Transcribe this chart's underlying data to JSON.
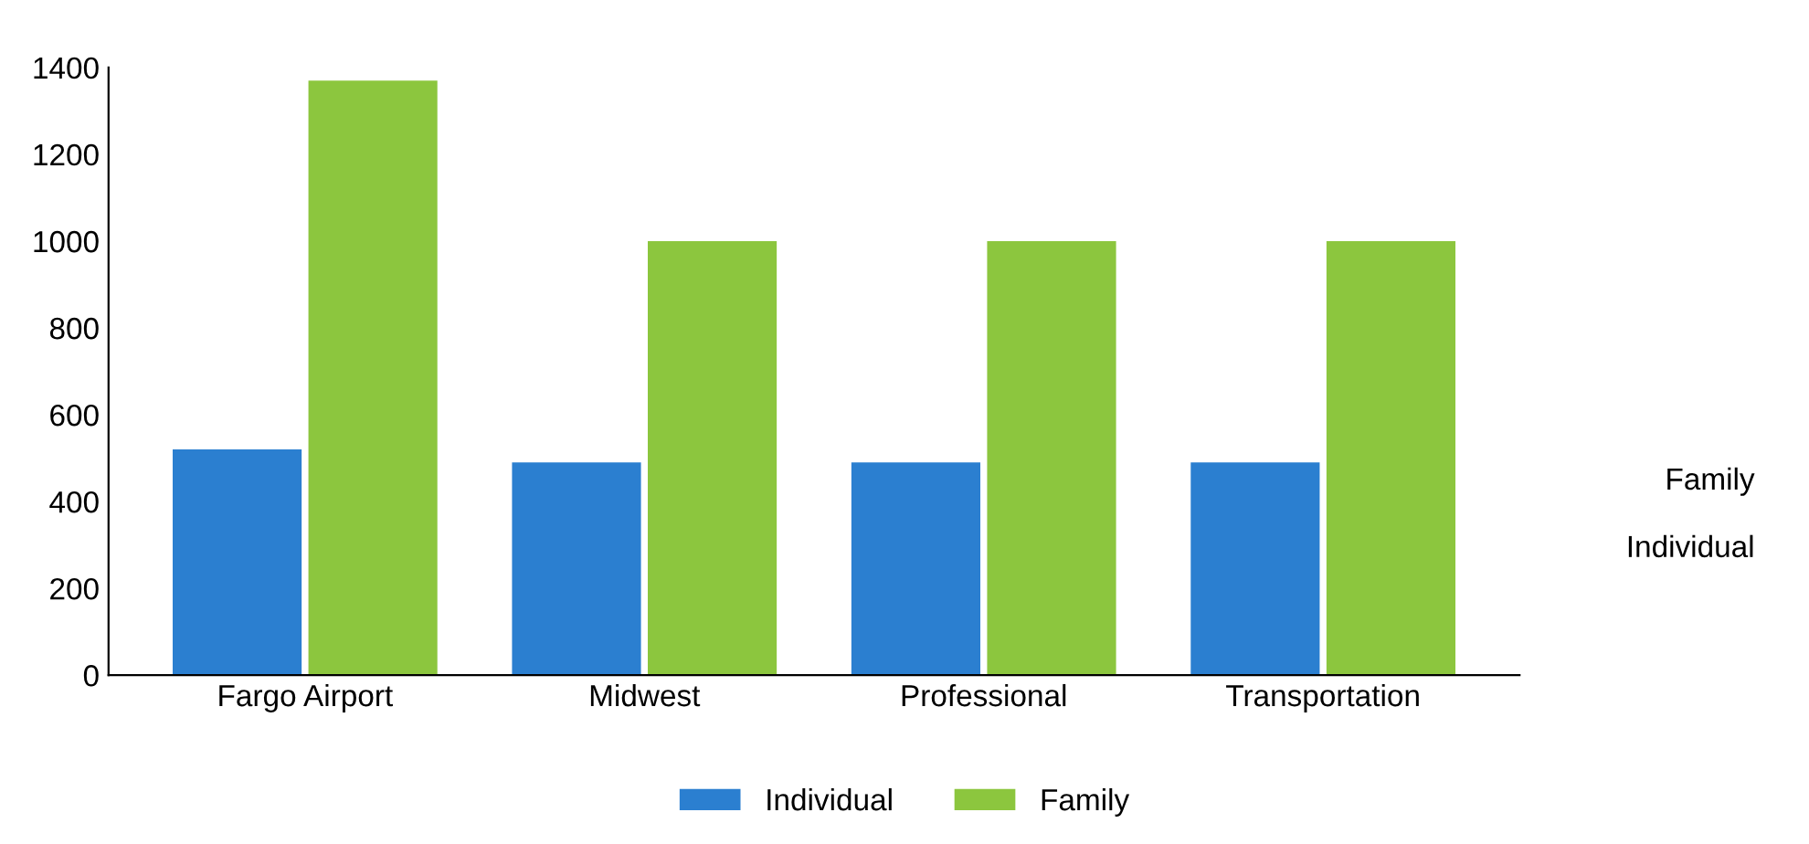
{
  "chart_data": {
    "type": "bar",
    "categories": [
      "Fargo Airport",
      "Midwest",
      "Professional",
      "Transportation"
    ],
    "series": [
      {
        "name": "Individual",
        "color": "#2b7fd0",
        "values": [
          520,
          490,
          490,
          490
        ]
      },
      {
        "name": "Family",
        "color": "#8cc63e",
        "values": [
          1370,
          1000,
          1000,
          1000
        ]
      }
    ],
    "ylim": [
      0,
      1400
    ],
    "yticks": [
      0,
      200,
      400,
      600,
      800,
      1000,
      1200,
      1400
    ],
    "annotations": [
      "Family",
      "Individual"
    ],
    "grid": false,
    "legend": "bottom"
  }
}
